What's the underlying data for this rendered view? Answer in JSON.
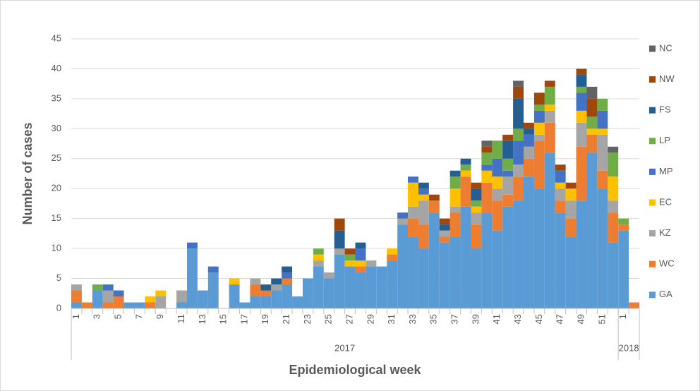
{
  "chart_data": {
    "type": "stacked-bar",
    "y_label": "Number of cases",
    "x_label": "Epidemiological week",
    "year_labels": [
      "2017",
      "2018"
    ],
    "categories": [
      "1",
      null,
      "3",
      null,
      "5",
      null,
      "7",
      null,
      "9",
      null,
      "11",
      null,
      "13",
      null,
      "15",
      null,
      "17",
      null,
      "19",
      null,
      "21",
      null,
      "23",
      null,
      "25",
      null,
      "27",
      null,
      "29",
      null,
      "31",
      null,
      "33",
      null,
      "35",
      null,
      "37",
      null,
      "39",
      null,
      "41",
      null,
      "43",
      null,
      "45",
      null,
      "47",
      null,
      "49",
      null,
      "51",
      null,
      "1",
      null
    ],
    "ylim": [
      0,
      45
    ],
    "yticks": [
      0,
      5,
      10,
      15,
      20,
      25,
      30,
      35,
      40,
      45
    ],
    "grid": true,
    "legend": "right",
    "series": [
      {
        "name": "GA",
        "color": "#5b9bd5",
        "values": [
          1,
          0,
          3,
          0,
          0,
          1,
          1,
          0,
          0,
          0,
          1,
          10,
          3,
          6,
          0,
          4,
          1,
          2,
          2,
          3,
          4,
          2,
          5,
          7,
          5,
          9,
          7,
          6,
          7,
          7,
          8,
          14,
          12,
          10,
          16,
          11,
          12,
          17,
          10,
          16,
          13,
          17,
          18,
          22,
          20,
          26,
          16,
          12,
          18,
          26,
          20,
          11,
          13,
          0
        ]
      },
      {
        "name": "WC",
        "color": "#ed7d31",
        "values": [
          2,
          1,
          0,
          1,
          2,
          0,
          0,
          1,
          0,
          0,
          0,
          0,
          0,
          0,
          0,
          0,
          0,
          2,
          1,
          0,
          1,
          0,
          0,
          0,
          0,
          0,
          0,
          1,
          0,
          0,
          1,
          0,
          3,
          4,
          2,
          1,
          4,
          5,
          4,
          5,
          5,
          2,
          4,
          3,
          8,
          5,
          2,
          3,
          9,
          3,
          3,
          5,
          1,
          1
        ]
      },
      {
        "name": "KZ",
        "color": "#a5a5a5",
        "values": [
          1,
          0,
          0,
          2,
          0,
          0,
          0,
          0,
          2,
          0,
          2,
          0,
          0,
          0,
          0,
          0,
          0,
          1,
          0,
          1,
          0,
          0,
          0,
          1,
          1,
          1,
          0,
          0,
          1,
          0,
          0,
          1,
          2,
          4,
          0,
          1,
          1,
          0,
          2,
          0,
          2,
          3,
          2,
          2,
          1,
          2,
          2,
          3,
          4,
          0,
          6,
          2,
          0,
          0
        ]
      },
      {
        "name": "EC",
        "color": "#ffc000",
        "values": [
          0,
          0,
          0,
          0,
          0,
          0,
          0,
          1,
          1,
          0,
          0,
          0,
          0,
          0,
          0,
          1,
          0,
          0,
          0,
          0,
          0,
          0,
          0,
          1,
          0,
          0,
          1,
          1,
          0,
          0,
          1,
          0,
          4,
          1,
          0,
          0,
          3,
          1,
          1,
          2,
          2,
          0,
          0,
          0,
          2,
          1,
          1,
          2,
          2,
          1,
          1,
          4,
          0,
          0
        ]
      },
      {
        "name": "MP",
        "color": "#4472c4",
        "values": [
          0,
          0,
          0,
          1,
          1,
          0,
          0,
          0,
          0,
          0,
          0,
          1,
          0,
          1,
          0,
          0,
          0,
          0,
          0,
          0,
          1,
          0,
          0,
          0,
          0,
          0,
          0,
          2,
          0,
          0,
          0,
          1,
          1,
          1,
          0,
          0,
          0,
          0,
          0,
          1,
          3,
          1,
          4,
          2,
          2,
          0,
          2,
          0,
          3,
          0,
          3,
          0,
          0,
          0
        ]
      },
      {
        "name": "LP",
        "color": "#70ad47",
        "values": [
          0,
          0,
          1,
          0,
          0,
          0,
          0,
          0,
          0,
          0,
          0,
          0,
          0,
          0,
          0,
          0,
          0,
          0,
          0,
          0,
          0,
          0,
          0,
          1,
          0,
          0,
          1,
          0,
          0,
          0,
          0,
          0,
          0,
          0,
          0,
          0,
          2,
          1,
          1,
          2,
          3,
          2,
          2,
          0,
          1,
          3,
          0,
          0,
          1,
          2,
          2,
          4,
          1,
          0
        ]
      },
      {
        "name": "FS",
        "color": "#255e91",
        "values": [
          0,
          0,
          0,
          0,
          0,
          0,
          0,
          0,
          0,
          0,
          0,
          0,
          0,
          0,
          0,
          0,
          0,
          0,
          1,
          1,
          1,
          0,
          0,
          0,
          0,
          3,
          0,
          1,
          0,
          0,
          0,
          0,
          0,
          1,
          0,
          1,
          1,
          1,
          2,
          0,
          0,
          3,
          5,
          1,
          0,
          0,
          0,
          0,
          2,
          0,
          0,
          0,
          0,
          0
        ]
      },
      {
        "name": "NW",
        "color": "#9e480e",
        "values": [
          0,
          0,
          0,
          0,
          0,
          0,
          0,
          0,
          0,
          0,
          0,
          0,
          0,
          0,
          0,
          0,
          0,
          0,
          0,
          0,
          0,
          0,
          0,
          0,
          0,
          2,
          1,
          0,
          0,
          0,
          0,
          0,
          0,
          0,
          1,
          1,
          0,
          0,
          1,
          1,
          0,
          1,
          2,
          1,
          2,
          1,
          1,
          1,
          1,
          3,
          0,
          0,
          0,
          0
        ]
      },
      {
        "name": "NC",
        "color": "#636363",
        "values": [
          0,
          0,
          0,
          0,
          0,
          0,
          0,
          0,
          0,
          0,
          0,
          0,
          0,
          0,
          0,
          0,
          0,
          0,
          0,
          0,
          0,
          0,
          0,
          0,
          0,
          0,
          0,
          0,
          0,
          0,
          0,
          0,
          0,
          0,
          0,
          0,
          0,
          0,
          0,
          1,
          0,
          0,
          1,
          0,
          0,
          0,
          0,
          0,
          0,
          2,
          0,
          1,
          0,
          0
        ]
      }
    ]
  }
}
